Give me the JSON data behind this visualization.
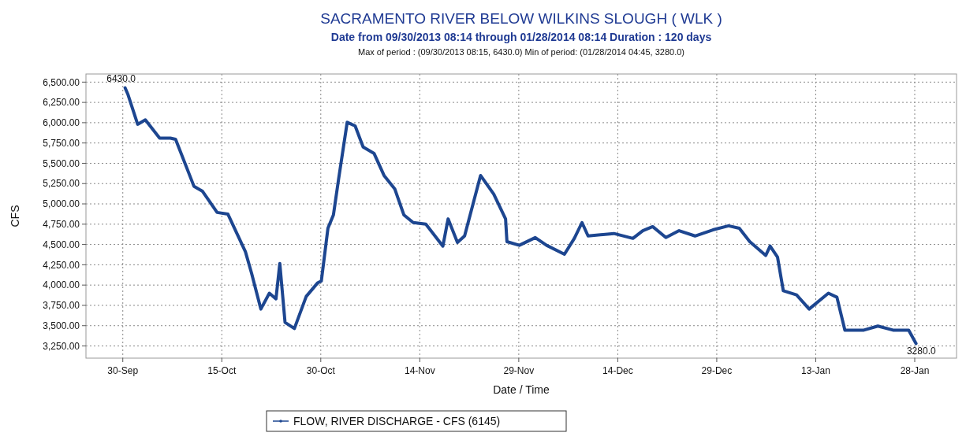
{
  "chart_data": {
    "type": "line",
    "title": "SACRAMENTO RIVER BELOW WILKINS SLOUGH ( WLK )",
    "subtitle": "Date from 09/30/2013 08:14 through 01/28/2014 08:14 Duration : 120 days",
    "annotations": [
      "Max of period : (09/30/2013 08:15, 6430.0)  Min of period: (01/28/2014 04:45,  3280.0)",
      {
        "text": "6430.0",
        "x": "2013-09-30T08:15",
        "y": 6430
      },
      {
        "text": "3280.0",
        "x": "2014-01-28T04:45",
        "y": 3280
      }
    ],
    "xlabel": "Date / Time",
    "ylabel": "CFS",
    "xlim": [
      "2013-09-24T10:00",
      "2014-02-03T08:00"
    ],
    "xticks": [
      {
        "value": "2013-09-30",
        "label": "30-Sep"
      },
      {
        "value": "2013-10-15",
        "label": "15-Oct"
      },
      {
        "value": "2013-10-30",
        "label": "30-Oct"
      },
      {
        "value": "2013-11-14",
        "label": "14-Nov"
      },
      {
        "value": "2013-11-29",
        "label": "29-Nov"
      },
      {
        "value": "2013-12-14",
        "label": "14-Dec"
      },
      {
        "value": "2013-12-29",
        "label": "29-Dec"
      },
      {
        "value": "2014-01-13",
        "label": "13-Jan"
      },
      {
        "value": "2014-01-28",
        "label": "28-Jan"
      }
    ],
    "ylim": [
      3100,
      6600
    ],
    "yticks": [
      {
        "value": 3250,
        "label": "3,250.00"
      },
      {
        "value": 3500,
        "label": "3,500.00"
      },
      {
        "value": 3750,
        "label": "3,750.00"
      },
      {
        "value": 4000,
        "label": "4,000.00"
      },
      {
        "value": 4250,
        "label": "4,250.00"
      },
      {
        "value": 4500,
        "label": "4,500.00"
      },
      {
        "value": 4750,
        "label": "4,750.00"
      },
      {
        "value": 5000,
        "label": "5,000.00"
      },
      {
        "value": 5250,
        "label": "5,250.00"
      },
      {
        "value": 5500,
        "label": "5,500.00"
      },
      {
        "value": 5750,
        "label": "5,750.00"
      },
      {
        "value": 6000,
        "label": "6,000.00"
      },
      {
        "value": 6250,
        "label": "6,250.00"
      },
      {
        "value": 6500,
        "label": "6,500.00"
      }
    ],
    "grid": true,
    "legend": "bottom",
    "line_style": "solid",
    "x": [
      "2013-09-30T08:15",
      "2013-09-30T19:00",
      "2013-10-02T06:00",
      "2013-10-03T10:00",
      "2013-10-05T14:00",
      "2013-10-07T05:00",
      "2013-10-08T00:00",
      "2013-10-10T19:00",
      "2013-10-12T02:00",
      "2013-10-14T07:00",
      "2013-10-15T22:00",
      "2013-10-18T14:00",
      "2013-10-19T12:00",
      "2013-10-20T22:00",
      "2013-10-22T05:00",
      "2013-10-23T05:00",
      "2013-10-23T19:00",
      "2013-10-24T14:00",
      "2013-10-26T00:00",
      "2013-10-27T19:00",
      "2013-10-29T12:00",
      "2013-10-30T02:00",
      "2013-10-31T02:00",
      "2013-10-31T22:00",
      "2013-11-01T17:00",
      "2013-11-03T00:00",
      "2013-11-04T05:00",
      "2013-11-05T10:00",
      "2013-11-07T02:00",
      "2013-11-08T14:00",
      "2013-11-10T05:00",
      "2013-11-11T14:00",
      "2013-11-13T00:00",
      "2013-11-14T22:00",
      "2013-11-17T12:00",
      "2013-11-18T07:00",
      "2013-11-19T17:00",
      "2013-11-20T19:00",
      "2013-11-23T05:00",
      "2013-11-25T05:00",
      "2013-11-27T00:00",
      "2013-11-27T05:00",
      "2013-11-29T02:00",
      "2013-12-01T12:00",
      "2013-12-03T05:00",
      "2013-12-05T22:00",
      "2013-12-07T10:00",
      "2013-12-08T14:00",
      "2013-12-09T12:00",
      "2013-12-13T10:00",
      "2013-12-16T07:00",
      "2013-12-17T19:00",
      "2013-12-19T07:00",
      "2013-12-21T07:00",
      "2013-12-23T07:00",
      "2013-12-25T17:00",
      "2013-12-28T10:00",
      "2013-12-30T19:00",
      "2014-01-01T10:00",
      "2014-01-03T00:00",
      "2014-01-05T10:00",
      "2014-01-06T02:00",
      "2014-01-07T05:00",
      "2014-01-08T02:00",
      "2014-01-10T02:00",
      "2014-01-12T00:00",
      "2014-01-14T22:00",
      "2014-01-16T05:00",
      "2014-01-17T10:00",
      "2014-01-20T07:00",
      "2014-01-22T10:00",
      "2014-01-24T17:00",
      "2014-01-27T02:00",
      "2014-01-28T04:45"
    ],
    "series": [
      {
        "name": "FLOW, RIVER DISCHARGE - CFS (6145)",
        "color": "#1d4690",
        "values": [
          6430,
          6345,
          5980,
          6035,
          5810,
          5810,
          5795,
          5215,
          5155,
          4895,
          4875,
          4410,
          4150,
          3705,
          3900,
          3830,
          4265,
          3540,
          3465,
          3860,
          4025,
          4050,
          4700,
          4865,
          5310,
          6005,
          5960,
          5700,
          5620,
          5350,
          5185,
          4865,
          4770,
          4750,
          4480,
          4815,
          4525,
          4605,
          5350,
          5120,
          4815,
          4535,
          4490,
          4585,
          4490,
          4380,
          4575,
          4770,
          4605,
          4635,
          4575,
          4670,
          4720,
          4585,
          4670,
          4605,
          4680,
          4730,
          4700,
          4535,
          4365,
          4480,
          4345,
          3930,
          3880,
          3705,
          3900,
          3850,
          3445,
          3445,
          3495,
          3445,
          3445,
          3280
        ]
      }
    ]
  }
}
